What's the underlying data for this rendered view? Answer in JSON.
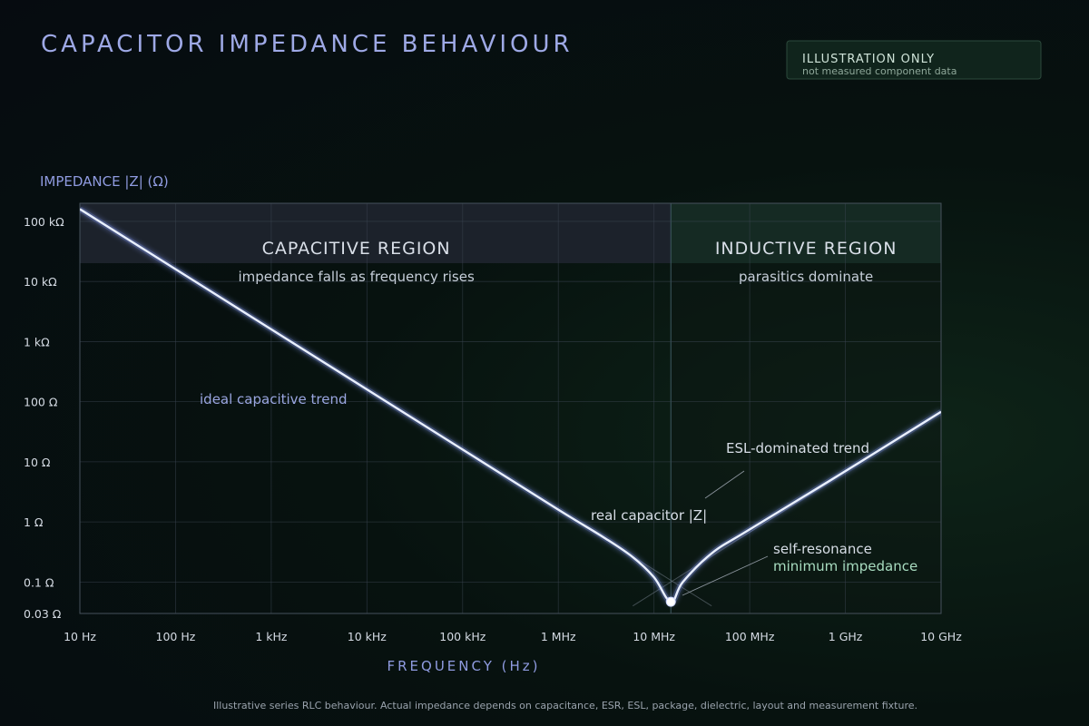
{
  "badge": {
    "title": "ILLUSTRATION ONLY",
    "subtitle": "not measured component data"
  },
  "footnote": "Illustrative series RLC behaviour. Actual impedance depends on capacitance, ESR, ESL, package, dielectric, layout and measurement fixture.",
  "colors": {
    "curve": "#e9f0ff",
    "capacitive_band": "#1c222b",
    "inductive_band": "#152a23",
    "grid": "#3a4450",
    "accent_label": "#8f9be0"
  },
  "chart_data": {
    "type": "line",
    "title": "CAPACITOR IMPEDANCE BEHAVIOUR",
    "xlabel": "FREQUENCY (Hz)",
    "ylabel": "IMPEDANCE |Z| (Ω)",
    "x_scale": "log",
    "y_scale": "log",
    "xlim": [
      10,
      10000000000
    ],
    "ylim": [
      0.03,
      200000
    ],
    "grid": true,
    "x_ticks": [
      {
        "value": 10,
        "label": "10 Hz"
      },
      {
        "value": 100,
        "label": "100 Hz"
      },
      {
        "value": 1000,
        "label": "1 kHz"
      },
      {
        "value": 10000,
        "label": "10 kHz"
      },
      {
        "value": 100000,
        "label": "100 kHz"
      },
      {
        "value": 1000000,
        "label": "1 MHz"
      },
      {
        "value": 10000000,
        "label": "10 MHz"
      },
      {
        "value": 100000000,
        "label": "100 MHz"
      },
      {
        "value": 1000000000,
        "label": "1 GHz"
      },
      {
        "value": 10000000000,
        "label": "10 GHz"
      }
    ],
    "y_ticks": [
      {
        "value": 0.03,
        "label": "0.03 Ω"
      },
      {
        "value": 0.1,
        "label": "0.1 Ω"
      },
      {
        "value": 1,
        "label": "1 Ω"
      },
      {
        "value": 10,
        "label": "10 Ω"
      },
      {
        "value": 100,
        "label": "100 Ω"
      },
      {
        "value": 1000,
        "label": "1 kΩ"
      },
      {
        "value": 10000,
        "label": "10 kΩ"
      },
      {
        "value": 100000,
        "label": "100 kΩ"
      }
    ],
    "regions": [
      {
        "name": "CAPACITIVE REGION",
        "subtitle": "impedance falls as frequency rises",
        "x_range": [
          10,
          15000000
        ]
      },
      {
        "name": "INDUCTIVE REGION",
        "subtitle": "parasitics dominate",
        "x_range": [
          15000000,
          10000000000
        ]
      }
    ],
    "series": [
      {
        "name": "real capacitor |Z|",
        "x": [
          10,
          100,
          1000,
          10000,
          100000,
          1000000,
          3000000,
          6000000,
          10000000,
          15000000,
          20000000,
          40000000,
          100000000,
          1000000000,
          10000000000
        ],
        "y": [
          160000,
          16000,
          1600,
          160,
          16,
          1.6,
          0.55,
          0.26,
          0.12,
          0.047,
          0.1,
          0.3,
          0.75,
          7,
          68
        ]
      }
    ],
    "trend_lines": [
      {
        "name": "ideal capacitive trend",
        "x": [
          10,
          40000000
        ],
        "y": [
          160000,
          0.04
        ]
      },
      {
        "name": "ESL-dominated trend",
        "x": [
          6000000,
          10000000000
        ],
        "y": [
          0.04,
          68
        ]
      }
    ],
    "annotations": [
      {
        "text": "ideal capacitive trend",
        "x": 100,
        "y": 170
      },
      {
        "text": "ESL-dominated trend",
        "x": 200000000,
        "y": 18
      },
      {
        "text": "real capacitor |Z|",
        "x": 3000000,
        "y": 1.6
      },
      {
        "text": "self-resonance",
        "x": 60000000,
        "y": 0.2
      },
      {
        "text": "minimum impedance",
        "x": 60000000,
        "y": 0.1
      }
    ],
    "resonance_point": {
      "x": 15000000,
      "y": 0.047
    }
  }
}
